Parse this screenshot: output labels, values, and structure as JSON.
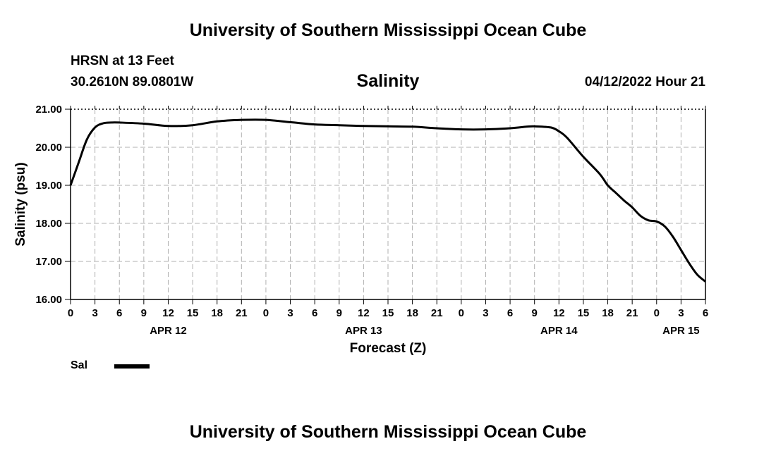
{
  "header": {
    "title": "University of Southern Mississippi Ocean Cube",
    "station": "HRSN at 13 Feet",
    "coords": "30.2610N  89.0801W",
    "datetime": "04/12/2022 Hour 21"
  },
  "footer": {
    "title": "University of Southern Mississippi Ocean Cube"
  },
  "chart_data": {
    "type": "line",
    "title": "Salinity",
    "xlabel": "Forecast (Z)",
    "ylabel": "Salinity (psu)",
    "ylim": [
      16.0,
      21.0
    ],
    "yticks": [
      "16.00",
      "17.00",
      "18.00",
      "19.00",
      "20.00",
      "21.00"
    ],
    "xlim": [
      0,
      78
    ],
    "xtick_labels": [
      "0",
      "3",
      "6",
      "9",
      "12",
      "15",
      "18",
      "21",
      "0",
      "3",
      "6",
      "9",
      "12",
      "15",
      "18",
      "21",
      "0",
      "3",
      "6",
      "9",
      "12",
      "15",
      "18",
      "21",
      "0",
      "3",
      "6"
    ],
    "day_labels": [
      {
        "label": "APR 12",
        "hour": 12
      },
      {
        "label": "APR 13",
        "hour": 36
      },
      {
        "label": "APR 14",
        "hour": 60
      },
      {
        "label": "APR 15",
        "hour": 75
      }
    ],
    "grid": true,
    "legend": "bottom-left",
    "series": [
      {
        "name": "Sal",
        "color": "#000000",
        "x": [
          0,
          1,
          2,
          3,
          4,
          5,
          6,
          9,
          12,
          15,
          18,
          21,
          24,
          27,
          30,
          33,
          36,
          39,
          42,
          45,
          48,
          51,
          54,
          56,
          57,
          59,
          60,
          61,
          63,
          65,
          66,
          67,
          68,
          69,
          70,
          71,
          72,
          73,
          74,
          75,
          76,
          77,
          78
        ],
        "values": [
          19.0,
          19.6,
          20.2,
          20.52,
          20.63,
          20.65,
          20.65,
          20.62,
          20.56,
          20.58,
          20.68,
          20.72,
          20.72,
          20.66,
          20.6,
          20.58,
          20.56,
          20.55,
          20.54,
          20.5,
          20.47,
          20.47,
          20.5,
          20.54,
          20.55,
          20.52,
          20.42,
          20.25,
          19.75,
          19.3,
          19.0,
          18.8,
          18.6,
          18.42,
          18.2,
          18.08,
          18.05,
          17.92,
          17.65,
          17.3,
          16.95,
          16.65,
          16.47
        ]
      }
    ]
  }
}
